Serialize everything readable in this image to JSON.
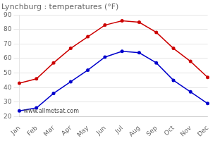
{
  "chart_data": {
    "type": "line",
    "title": "Lynchburg : temperatures (°F)",
    "categories": [
      "Jan",
      "Feb",
      "Mar",
      "Apr",
      "May",
      "Jun",
      "Jul",
      "Aug",
      "Sep",
      "Oct",
      "Nov",
      "Dec"
    ],
    "series": [
      {
        "color": "#cc0000",
        "values": [
          43,
          46,
          57,
          67,
          75,
          83,
          86,
          85,
          78,
          67,
          58,
          47
        ]
      },
      {
        "color": "#0000cc",
        "values": [
          24,
          26,
          36,
          44,
          52,
          61,
          65,
          64,
          57,
          45,
          37,
          29
        ]
      }
    ],
    "ylim": [
      20,
      90
    ],
    "yticks": [
      20,
      30,
      40,
      50,
      60,
      70,
      80,
      90
    ],
    "grid": true,
    "marker": "circle",
    "annotation": "www.allmetsat.com"
  }
}
